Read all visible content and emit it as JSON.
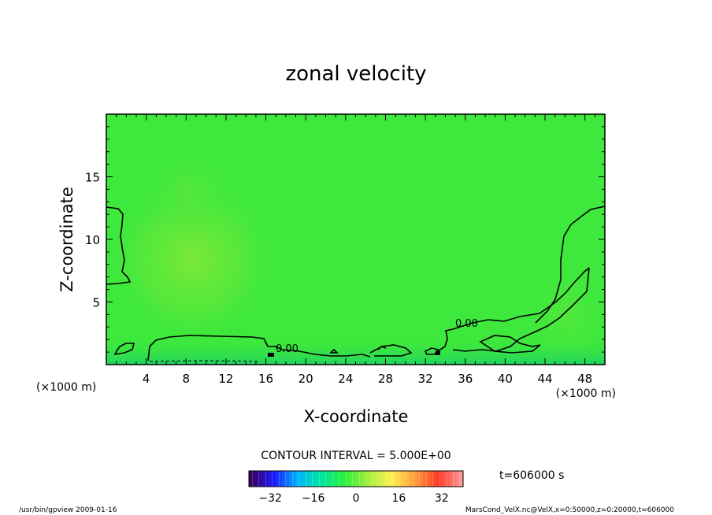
{
  "chart_data": {
    "type": "heatmap",
    "title": "zonal velocity",
    "xlabel": "X-coordinate",
    "ylabel": "Z-coordinate",
    "x_unit_label": "(×1000 m)",
    "z_unit_label": "(×1000 m)",
    "xlim": [
      0,
      50
    ],
    "ylim": [
      0,
      20
    ],
    "x_ticks": [
      4,
      8,
      12,
      16,
      20,
      24,
      28,
      32,
      36,
      40,
      44,
      48
    ],
    "y_ticks": [
      5,
      10,
      15
    ],
    "contour_interval_text": "CONTOUR INTERVAL = 5.000E+00",
    "contour_labels": [
      "0.00",
      "0.00"
    ],
    "time_text": "t=606000 s",
    "colorbar": {
      "range": [
        -40,
        40
      ],
      "ticks": [
        -32,
        -16,
        0,
        16,
        32
      ],
      "palette": [
        "#3a005a",
        "#1a1aff",
        "#00b4ff",
        "#00e6a0",
        "#28f03c",
        "#a0f03c",
        "#fff050",
        "#ffa03c",
        "#ff3c28",
        "#ff9696"
      ]
    },
    "field_description_values": {
      "background_velocity": 0,
      "max_positive_region_center": [
        8,
        8
      ],
      "near_surface_negative_strip_z": [
        0,
        1
      ]
    }
  },
  "footer": {
    "left": "/usr/bin/gpview   2009-01-16",
    "right": "MarsCond_VelX.nc@VelX,x=0:50000,z=0:20000,t=606000"
  },
  "colors": {
    "field_base": "#3ee83c",
    "field_warm": "#7ce83a",
    "field_cool": "#20d85a",
    "contour": "#000000"
  }
}
